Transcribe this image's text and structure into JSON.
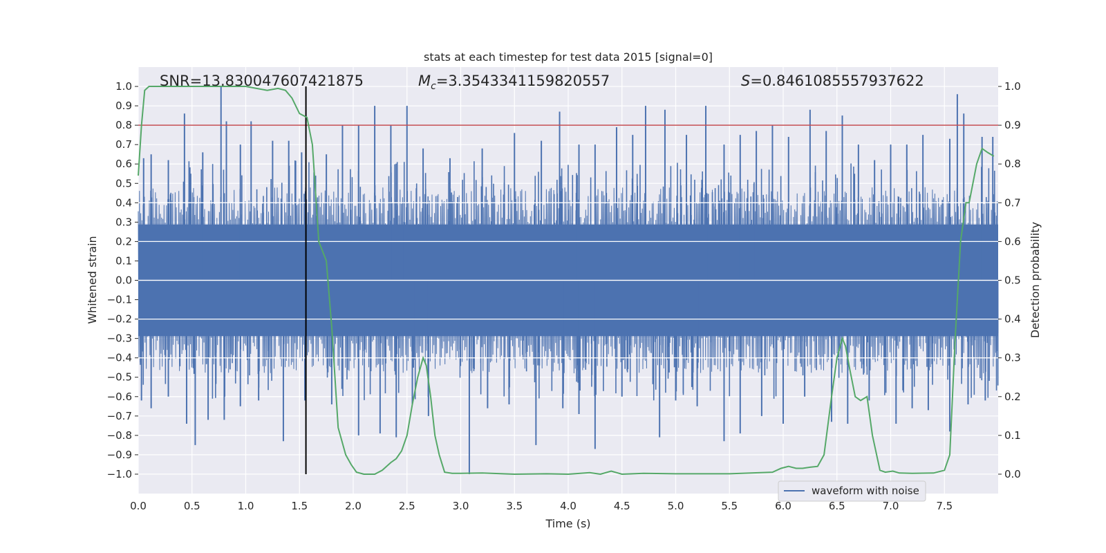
{
  "chart_data": {
    "type": "line",
    "title": "stats at each timestep for test data 2015 [signal=0]",
    "xlabel": "Time (s)",
    "ylabel_left": "Whitened strain",
    "ylabel_right": "Detection probability",
    "xlim": [
      0.0,
      8.0
    ],
    "ylim_left": [
      -1.1,
      1.1
    ],
    "ylim_right": [
      -0.05,
      1.05
    ],
    "x_ticks": [
      "0.0",
      "0.5",
      "1.0",
      "1.5",
      "2.0",
      "2.5",
      "3.0",
      "3.5",
      "4.0",
      "4.5",
      "5.0",
      "5.5",
      "6.0",
      "6.5",
      "7.0",
      "7.5"
    ],
    "x_tick_values": [
      0.0,
      0.5,
      1.0,
      1.5,
      2.0,
      2.5,
      3.0,
      3.5,
      4.0,
      4.5,
      5.0,
      5.5,
      6.0,
      6.5,
      7.0,
      7.5
    ],
    "left_ticks": [
      "1.0",
      "0.9",
      "0.8",
      "0.7",
      "0.6",
      "0.5",
      "0.4",
      "0.3",
      "0.2",
      "0.1",
      "0.0",
      "−0.1",
      "−0.2",
      "−0.3",
      "−0.4",
      "−0.5",
      "−0.6",
      "−0.7",
      "−0.8",
      "−0.9",
      "−1.0"
    ],
    "left_tick_values": [
      1.0,
      0.9,
      0.8,
      0.7,
      0.6,
      0.5,
      0.4,
      0.3,
      0.2,
      0.1,
      0.0,
      -0.1,
      -0.2,
      -0.3,
      -0.4,
      -0.5,
      -0.6,
      -0.7,
      -0.8,
      -0.9,
      -1.0
    ],
    "right_ticks": [
      "1.0",
      "0.9",
      "0.8",
      "0.7",
      "0.6",
      "0.5",
      "0.4",
      "0.3",
      "0.2",
      "0.1",
      "0.0"
    ],
    "right_tick_values": [
      1.0,
      0.9,
      0.8,
      0.7,
      0.6,
      0.5,
      0.4,
      0.3,
      0.2,
      0.1,
      0.0
    ],
    "grid": true,
    "threshold": {
      "value": 0.9,
      "axis": "right",
      "color": "#c44e52"
    },
    "marker_line": {
      "x": 1.56,
      "y_from": -1.0,
      "y_to": 1.0,
      "color": "#000000"
    },
    "waveform": {
      "name": "waveform with noise",
      "color": "#4c72b0",
      "duration_s": 8.0,
      "band_amplitude": 0.4,
      "spikes_up": [
        [
          0.05,
          0.63
        ],
        [
          0.12,
          0.65
        ],
        [
          0.28,
          0.62
        ],
        [
          0.43,
          0.86
        ],
        [
          0.6,
          0.66
        ],
        [
          0.77,
          1.0
        ],
        [
          0.82,
          0.82
        ],
        [
          0.95,
          0.7
        ],
        [
          1.05,
          0.82
        ],
        [
          1.25,
          0.72
        ],
        [
          1.4,
          0.72
        ],
        [
          1.52,
          0.66
        ],
        [
          1.75,
          0.65
        ],
        [
          1.9,
          0.8
        ],
        [
          2.05,
          0.8
        ],
        [
          2.2,
          0.9
        ],
        [
          2.35,
          0.8
        ],
        [
          2.5,
          0.9
        ],
        [
          2.65,
          0.68
        ],
        [
          2.9,
          0.63
        ],
        [
          3.2,
          0.68
        ],
        [
          3.5,
          0.76
        ],
        [
          3.75,
          0.72
        ],
        [
          3.92,
          0.87
        ],
        [
          4.1,
          0.7
        ],
        [
          4.25,
          0.7
        ],
        [
          4.45,
          0.79
        ],
        [
          4.6,
          0.75
        ],
        [
          4.72,
          0.9
        ],
        [
          4.9,
          0.88
        ],
        [
          5.1,
          0.75
        ],
        [
          5.28,
          0.9
        ],
        [
          5.45,
          0.7
        ],
        [
          5.6,
          0.75
        ],
        [
          5.75,
          0.77
        ],
        [
          5.9,
          0.8
        ],
        [
          6.05,
          0.74
        ],
        [
          6.25,
          0.88
        ],
        [
          6.4,
          0.77
        ],
        [
          6.55,
          0.85
        ],
        [
          6.7,
          0.7
        ],
        [
          6.85,
          0.62
        ],
        [
          7.0,
          0.7
        ],
        [
          7.15,
          0.7
        ],
        [
          7.3,
          0.75
        ],
        [
          7.55,
          0.73
        ],
        [
          7.62,
          0.96
        ],
        [
          7.68,
          0.86
        ],
        [
          7.85,
          0.74
        ],
        [
          7.95,
          0.74
        ]
      ],
      "spikes_down": [
        [
          0.03,
          -0.62
        ],
        [
          0.12,
          -0.66
        ],
        [
          0.28,
          -0.6
        ],
        [
          0.45,
          -0.74
        ],
        [
          0.53,
          -0.85
        ],
        [
          0.65,
          -0.72
        ],
        [
          0.8,
          -0.72
        ],
        [
          0.95,
          -0.65
        ],
        [
          1.12,
          -0.62
        ],
        [
          1.35,
          -0.83
        ],
        [
          1.55,
          -0.62
        ],
        [
          1.8,
          -0.64
        ],
        [
          2.05,
          -0.8
        ],
        [
          2.25,
          -0.79
        ],
        [
          2.4,
          -0.81
        ],
        [
          2.55,
          -0.64
        ],
        [
          2.7,
          -0.7
        ],
        [
          3.08,
          -1.0
        ],
        [
          3.25,
          -0.66
        ],
        [
          3.45,
          -0.64
        ],
        [
          3.7,
          -0.85
        ],
        [
          3.95,
          -0.66
        ],
        [
          4.1,
          -0.69
        ],
        [
          4.25,
          -0.87
        ],
        [
          4.5,
          -0.6
        ],
        [
          4.85,
          -0.81
        ],
        [
          5.0,
          -0.62
        ],
        [
          5.2,
          -0.65
        ],
        [
          5.45,
          -0.83
        ],
        [
          5.6,
          -0.79
        ],
        [
          5.8,
          -0.7
        ],
        [
          6.0,
          -0.74
        ],
        [
          6.2,
          -0.6
        ],
        [
          6.45,
          -0.73
        ],
        [
          6.6,
          -0.74
        ],
        [
          6.8,
          -0.62
        ],
        [
          7.05,
          -0.74
        ],
        [
          7.2,
          -0.66
        ],
        [
          7.35,
          -0.67
        ],
        [
          7.55,
          -0.78
        ],
        [
          7.72,
          -0.64
        ],
        [
          7.88,
          -0.62
        ]
      ]
    },
    "probability": {
      "name": "detection probability",
      "color": "#55a868",
      "x": [
        0.0,
        0.03,
        0.06,
        0.1,
        0.2,
        0.3,
        0.5,
        0.8,
        1.0,
        1.1,
        1.2,
        1.3,
        1.37,
        1.43,
        1.5,
        1.57,
        1.62,
        1.68,
        1.75,
        1.8,
        1.86,
        1.93,
        1.98,
        2.03,
        2.1,
        2.2,
        2.27,
        2.35,
        2.4,
        2.45,
        2.5,
        2.55,
        2.6,
        2.65,
        2.68,
        2.72,
        2.76,
        2.8,
        2.85,
        2.92,
        3.0,
        3.2,
        3.5,
        3.8,
        4.0,
        4.2,
        4.3,
        4.4,
        4.5,
        4.7,
        5.0,
        5.5,
        5.9,
        5.98,
        6.05,
        6.12,
        6.18,
        6.25,
        6.32,
        6.38,
        6.45,
        6.5,
        6.55,
        6.58,
        6.62,
        6.67,
        6.72,
        6.78,
        6.83,
        6.9,
        6.95,
        7.02,
        7.08,
        7.2,
        7.4,
        7.5,
        7.55,
        7.6,
        7.65,
        7.7,
        7.73,
        7.8,
        7.85,
        7.9,
        7.96
      ],
      "y": [
        0.77,
        0.9,
        0.99,
        1.0,
        1.0,
        1.0,
        1.0,
        1.0,
        1.0,
        0.995,
        0.99,
        0.995,
        0.99,
        0.97,
        0.93,
        0.92,
        0.85,
        0.6,
        0.55,
        0.38,
        0.12,
        0.05,
        0.025,
        0.005,
        0.0,
        0.0,
        0.01,
        0.03,
        0.04,
        0.06,
        0.1,
        0.18,
        0.25,
        0.3,
        0.28,
        0.2,
        0.1,
        0.05,
        0.005,
        0.002,
        0.002,
        0.003,
        0.0,
        0.001,
        0.0,
        0.004,
        0.0,
        0.008,
        0.0,
        0.002,
        0.001,
        0.001,
        0.005,
        0.015,
        0.02,
        0.015,
        0.015,
        0.018,
        0.02,
        0.05,
        0.2,
        0.3,
        0.35,
        0.33,
        0.27,
        0.2,
        0.19,
        0.2,
        0.1,
        0.01,
        0.005,
        0.008,
        0.003,
        0.002,
        0.003,
        0.01,
        0.05,
        0.35,
        0.6,
        0.7,
        0.7,
        0.8,
        0.84,
        0.83,
        0.82
      ]
    }
  },
  "stats": {
    "snr": "SNR=13.830047607421875",
    "mc_symbol": "M",
    "mc_subscript": "c",
    "mc_value": "=3.3543341159820557",
    "s_symbol": "S",
    "s_value": "=0.8461085557937622"
  },
  "legend": {
    "label": "waveform with noise",
    "position": "lower-right"
  },
  "colors": {
    "axes_bg": "#eaeaf2",
    "grid": "#ffffff",
    "waveform": "#4c72b0",
    "probability": "#55a868",
    "threshold": "#c44e52"
  }
}
